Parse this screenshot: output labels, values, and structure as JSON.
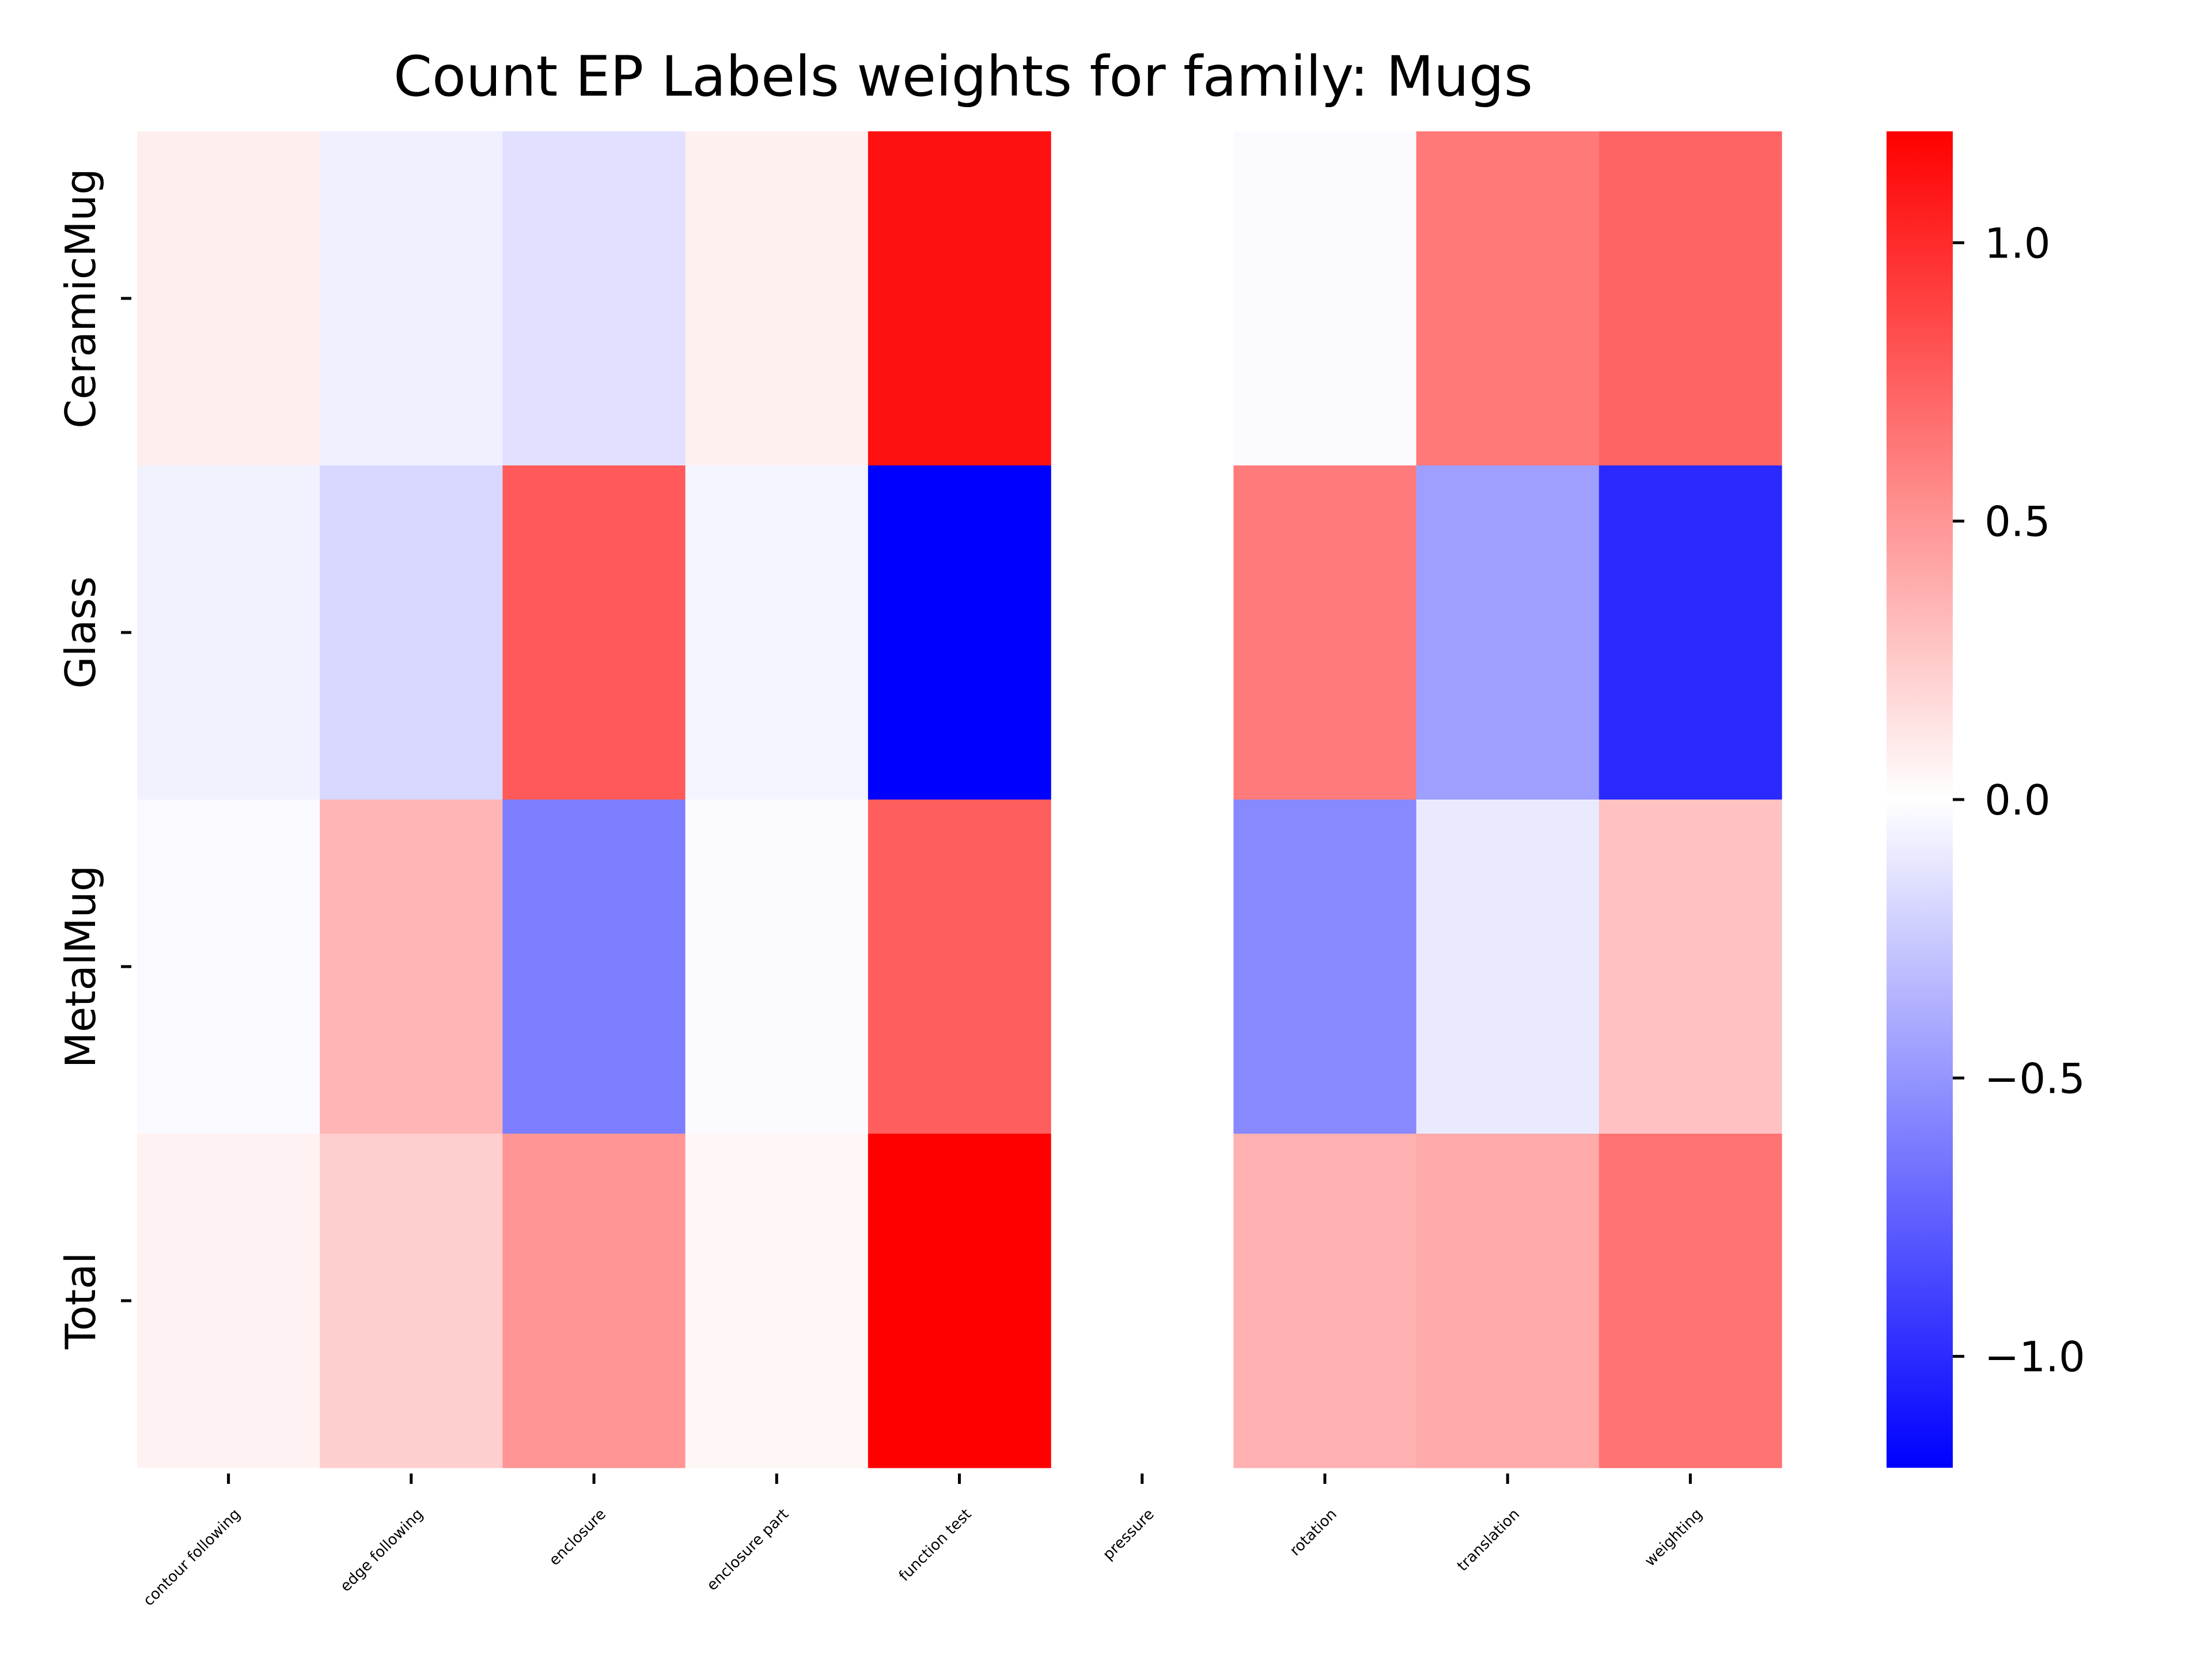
{
  "chart_data": {
    "type": "heatmap",
    "title": "Count EP Labels weights for family: Mugs",
    "xlabel": "",
    "ylabel": "",
    "columns": [
      "contour following",
      "edge following",
      "enclosure",
      "enclosure part",
      "function test",
      "pressure",
      "rotation",
      "translation",
      "weighting"
    ],
    "rows": [
      "CeramicMug",
      "Glass",
      "MetalMug",
      "Total"
    ],
    "values": [
      [
        0.08,
        -0.07,
        -0.14,
        0.07,
        1.12,
        null,
        -0.02,
        0.63,
        0.73
      ],
      [
        -0.06,
        -0.19,
        0.78,
        -0.05,
        -1.2,
        null,
        0.62,
        -0.45,
        -1.0
      ],
      [
        -0.03,
        0.35,
        -0.61,
        -0.02,
        0.76,
        null,
        -0.56,
        -0.1,
        0.29
      ],
      [
        0.06,
        0.23,
        0.5,
        0.04,
        1.2,
        null,
        0.37,
        0.4,
        0.66
      ]
    ],
    "colorbar": {
      "min": -1.2,
      "max": 1.2,
      "ticks": [
        1.0,
        0.5,
        0.0,
        -0.5,
        -1.0
      ],
      "tick_labels": [
        "1.0",
        "0.5",
        "0.0",
        "−0.5",
        "−1.0"
      ],
      "colormap": "bwr",
      "low_color": "#0000ff",
      "mid_color": "#ffffff",
      "high_color": "#ff0000"
    },
    "grid": false,
    "legend": "colorbar-right"
  }
}
